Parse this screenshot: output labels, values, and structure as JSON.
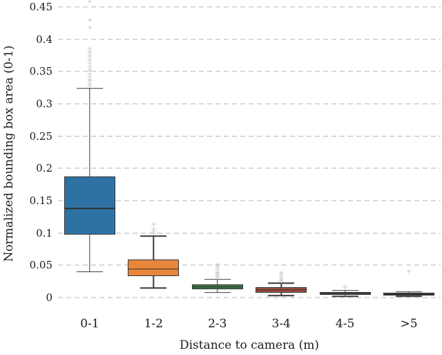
{
  "chart_data": {
    "type": "boxplot",
    "title": "",
    "xlabel": "Distance to camera (m)",
    "ylabel": "Normalized bounding box area (0-1)",
    "categories": [
      "0-1",
      "1-2",
      "2-3",
      "3-4",
      "4-5",
      ">5"
    ],
    "yticks": [
      0,
      0.05,
      0.1,
      0.15,
      0.2,
      0.25,
      0.3,
      0.35,
      0.4,
      0.45
    ],
    "ytick_labels": [
      "0",
      "0.05",
      "0.1",
      "0.15",
      "0.2",
      "0.25",
      "0.3",
      "0.35",
      "0.4",
      "0.45"
    ],
    "ylim": [
      0,
      0.46
    ],
    "grid": "horizontal-dashed",
    "legend": "none",
    "gridline_color": "#d9d9d9",
    "line_color": "#3a3a3a",
    "outlier_color": "#c3c3c3",
    "series": [
      {
        "category": "0-1",
        "color": "#2e72a4",
        "whisker_low": 0.04,
        "q1": 0.098,
        "median": 0.138,
        "q3": 0.188,
        "whisker_high": 0.324,
        "outliers": [
          0.327,
          0.33,
          0.334,
          0.337,
          0.341,
          0.345,
          0.349,
          0.353,
          0.357,
          0.361,
          0.365,
          0.369,
          0.373,
          0.377,
          0.381,
          0.385,
          0.417,
          0.429,
          0.458
        ]
      },
      {
        "category": "1-2",
        "color": "#e8873b",
        "whisker_low": 0.015,
        "q1": 0.033,
        "median": 0.044,
        "q3": 0.059,
        "whisker_high": 0.095,
        "outliers": [
          0.099,
          0.102,
          0.105,
          0.113
        ]
      },
      {
        "category": "2-3",
        "color": "#3e7a47",
        "whisker_low": 0.008,
        "q1": 0.013,
        "median": 0.016,
        "q3": 0.02,
        "whisker_high": 0.028,
        "outliers": [
          0.03,
          0.032,
          0.034,
          0.036,
          0.038,
          0.041,
          0.044,
          0.047,
          0.05
        ]
      },
      {
        "category": "3-4",
        "color": "#9c4f3d",
        "whisker_low": 0.003,
        "q1": 0.008,
        "median": 0.012,
        "q3": 0.016,
        "whisker_high": 0.022,
        "outliers": [
          0.024,
          0.026,
          0.028,
          0.031,
          0.034,
          0.037
        ]
      },
      {
        "category": "4-5",
        "color": "#8a8a8a",
        "whisker_low": 0.002,
        "q1": 0.004,
        "median": 0.006,
        "q3": 0.009,
        "whisker_high": 0.011,
        "outliers": [
          0.015
        ]
      },
      {
        "category": ">5",
        "color": "#606060",
        "whisker_low": 0.002,
        "q1": 0.0035,
        "median": 0.005,
        "q3": 0.007,
        "whisker_high": 0.009,
        "outliers": [
          0.04
        ]
      }
    ]
  }
}
